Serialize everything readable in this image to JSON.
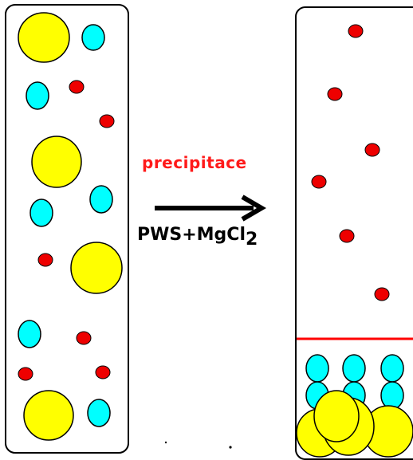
{
  "labels": {
    "process": "precipitace",
    "reagent_main": "PWS+MgCl",
    "reagent_subscript": "2"
  },
  "colors": {
    "large_particle": "#ffff00",
    "medium_particle": "#00ffff",
    "small_particle": "#ee0000",
    "outline": "#000000",
    "boundary_line": "#ff0000",
    "label_red": "#ff1a1a"
  },
  "tubes": [
    "before",
    "after"
  ]
}
